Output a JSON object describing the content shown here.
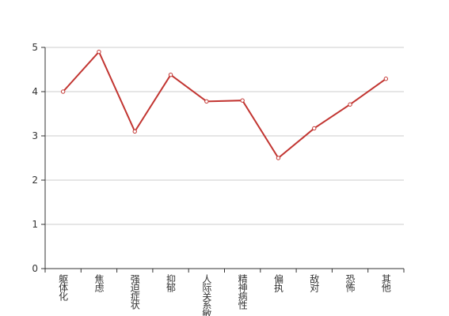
{
  "chart_data": {
    "type": "line",
    "categories": [
      "躯体化",
      "焦虑",
      "强迫症状",
      "抑郁",
      "人际关系敏感",
      "精神病性",
      "偏执",
      "敌对",
      "恐怖",
      "其他"
    ],
    "values": [
      4.0,
      4.9,
      3.1,
      4.38,
      3.78,
      3.8,
      2.5,
      3.17,
      3.71,
      4.29
    ],
    "color": "#c23531",
    "ylim": [
      0,
      5
    ],
    "yticks": [
      0,
      1,
      2,
      3,
      4,
      5
    ],
    "grid": true
  }
}
